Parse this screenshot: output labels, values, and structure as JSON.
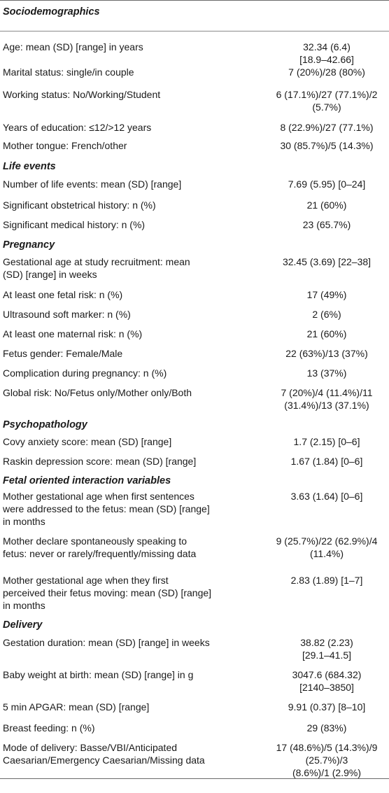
{
  "sections": [
    {
      "title": "Sociodemographics",
      "rows": [
        {
          "label": [
            "Age: mean (SD) [range] in years"
          ],
          "value": [
            "32.34 (6.4)",
            "[18.9–42.66]"
          ]
        },
        {
          "label": [
            "Marital status: single/in couple"
          ],
          "value": [
            "7 (20%)/28 (80%)"
          ]
        },
        {
          "label": [
            "Working status: No/Working/Student"
          ],
          "value": [
            "6 (17.1%)/27 (77.1%)/2",
            "(5.7%)"
          ]
        },
        {
          "label": [
            "Years of education: ≤12/>12 years"
          ],
          "value": [
            "8 (22.9%)/27 (77.1%)"
          ]
        },
        {
          "label": [
            "Mother tongue: French/other"
          ],
          "value": [
            "30 (85.7%)/5 (14.3%)"
          ]
        }
      ]
    },
    {
      "title": "Life events",
      "rows": [
        {
          "label": [
            "Number of life events: mean (SD) [range]"
          ],
          "value": [
            "7.69 (5.95) [0–24]"
          ]
        },
        {
          "label": [
            "Significant obstetrical history: n (%)"
          ],
          "value": [
            "21 (60%)"
          ]
        },
        {
          "label": [
            "Significant medical history: n (%)"
          ],
          "value": [
            "23 (65.7%)"
          ]
        }
      ]
    },
    {
      "title": "Pregnancy",
      "rows": [
        {
          "label": [
            "Gestational age at study recruitment: mean",
            "(SD) [range] in weeks"
          ],
          "value": [
            "32.45 (3.69) [22–38]"
          ]
        },
        {
          "label": [
            "At least one fetal risk: n (%)"
          ],
          "value": [
            "17 (49%)"
          ]
        },
        {
          "label": [
            "Ultrasound soft marker: n (%)"
          ],
          "value": [
            "2 (6%)"
          ]
        },
        {
          "label": [
            "At least one maternal risk: n (%)"
          ],
          "value": [
            "21 (60%)"
          ]
        },
        {
          "label": [
            "Fetus gender: Female/Male"
          ],
          "value": [
            "22 (63%)/13 (37%)"
          ]
        },
        {
          "label": [
            "Complication during pregnancy: n (%)"
          ],
          "value": [
            "13 (37%)"
          ]
        },
        {
          "label": [
            "Global risk: No/Fetus only/Mother only/Both"
          ],
          "value": [
            "7 (20%)/4 (11.4%)/11",
            "(31.4%)/13 (37.1%)"
          ]
        }
      ]
    },
    {
      "title": "Psychopathology",
      "rows": [
        {
          "label": [
            "Covy anxiety score: mean (SD) [range]"
          ],
          "value": [
            "1.7 (2.15) [0–6]"
          ]
        },
        {
          "label": [
            "Raskin depression score: mean (SD) [range]"
          ],
          "value": [
            "1.67 (1.84) [0–6]"
          ]
        }
      ]
    },
    {
      "title": "Fetal oriented interaction variables",
      "rows": [
        {
          "label": [
            "Mother gestational age when first sentences",
            "were addressed to the fetus: mean (SD) [range]",
            "in months"
          ],
          "value": [
            "3.63 (1.64) [0–6]"
          ]
        },
        {
          "label": [
            "Mother declare spontaneously speaking to",
            "fetus: never or rarely/frequently/missing data"
          ],
          "value": [
            "9 (25.7%)/22 (62.9%)/4",
            "(11.4%)"
          ]
        },
        {
          "label": [
            "Mother gestational age when they first",
            "perceived their fetus moving: mean (SD) [range]",
            "in months"
          ],
          "value": [
            "2.83 (1.89) [1–7]"
          ]
        }
      ]
    },
    {
      "title": "Delivery",
      "rows": [
        {
          "label": [
            "Gestation duration: mean (SD) [range] in weeks"
          ],
          "value": [
            "38.82 (2.23)",
            "[29.1–41.5]"
          ]
        },
        {
          "label": [
            "Baby weight at birth: mean (SD) [range] in g"
          ],
          "value": [
            "3047.6 (684.32)",
            "[2140–3850]"
          ]
        },
        {
          "label": [
            "5 min APGAR: mean (SD) [range]"
          ],
          "value": [
            "9.91 (0.37) [8–10]"
          ]
        },
        {
          "label": [
            "Breast feeding: n (%)"
          ],
          "value": [
            "29 (83%)"
          ]
        },
        {
          "label": [
            "Mode of delivery: Basse/VBI/Anticipated",
            "Caesarian/Emergency Caesarian/Missing data"
          ],
          "value": [
            "17 (48.6%)/5 (14.3%)/9",
            "(25.7%)/3",
            "(8.6%)/1 (2.9%)"
          ]
        }
      ]
    }
  ]
}
